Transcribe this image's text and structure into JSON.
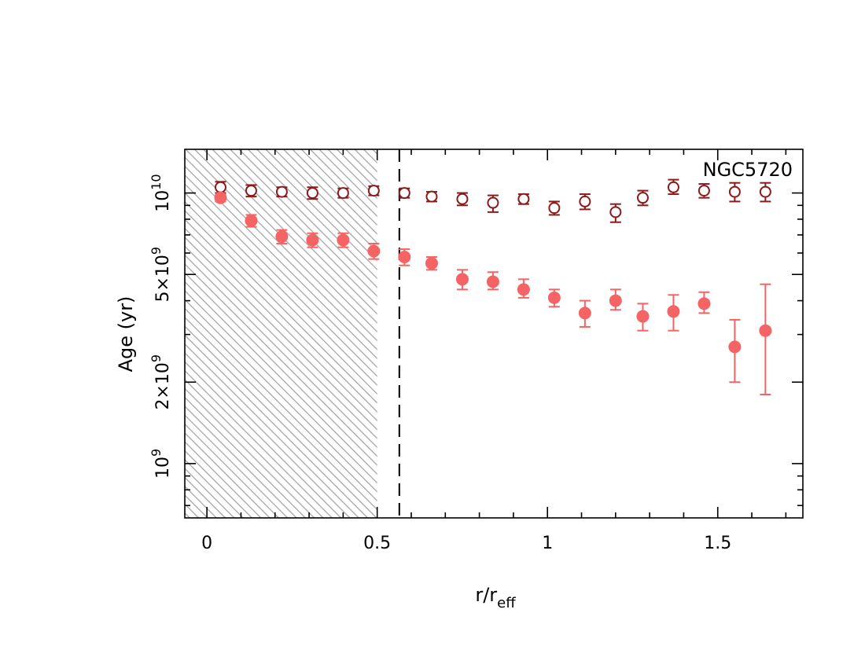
{
  "chart_data": {
    "type": "scatter",
    "title": "",
    "annotation": "NGC5720",
    "xlabel": "r/r",
    "xlabel_sub": "eff",
    "ylabel": "Age (yr)",
    "xlim": [
      -0.065,
      1.75
    ],
    "ylim": [
      630000000.0,
      14500000000.0
    ],
    "y_scale": "log",
    "grid": false,
    "legend": "none",
    "x_ticks": [
      {
        "value": 0,
        "label": "0"
      },
      {
        "value": 0.5,
        "label": "0.5"
      },
      {
        "value": 1,
        "label": "1"
      },
      {
        "value": 1.5,
        "label": "1.5"
      }
    ],
    "y_ticks": [
      {
        "value": 1000000000.0,
        "base": "10",
        "exp": "9"
      },
      {
        "value": 2000000000.0,
        "base": "2×10",
        "exp": "9"
      },
      {
        "value": 5000000000.0,
        "base": "5×10",
        "exp": "9"
      },
      {
        "value": 10000000000.0,
        "base": "10",
        "exp": "10"
      }
    ],
    "shaded_region": {
      "x_from": -0.065,
      "x_to": 0.5,
      "pattern": "diagonal-hatch",
      "color": "#a0a0a0"
    },
    "vline": {
      "x": 0.565,
      "style": "dashed",
      "color": "#000000"
    },
    "series": [
      {
        "marker": "open-circle",
        "color": "#8b1a1a",
        "points": [
          {
            "x": 0.04,
            "y": 10500000000.0,
            "lo": 10000000000.0,
            "hi": 11000000000.0
          },
          {
            "x": 0.13,
            "y": 10200000000.0,
            "lo": 9700000000.0,
            "hi": 10700000000.0
          },
          {
            "x": 0.22,
            "y": 10100000000.0,
            "lo": 9700000000.0,
            "hi": 10500000000.0
          },
          {
            "x": 0.31,
            "y": 10000000000.0,
            "lo": 9500000000.0,
            "hi": 10500000000.0
          },
          {
            "x": 0.4,
            "y": 10000000000.0,
            "lo": 9600000000.0,
            "hi": 10400000000.0
          },
          {
            "x": 0.49,
            "y": 10200000000.0,
            "lo": 9800000000.0,
            "hi": 10600000000.0
          },
          {
            "x": 0.58,
            "y": 10000000000.0,
            "lo": 9600000000.0,
            "hi": 10400000000.0
          },
          {
            "x": 0.66,
            "y": 9700000000.0,
            "lo": 9300000000.0,
            "hi": 10100000000.0
          },
          {
            "x": 0.75,
            "y": 9500000000.0,
            "lo": 9000000000.0,
            "hi": 10000000000.0
          },
          {
            "x": 0.84,
            "y": 9200000000.0,
            "lo": 8500000000.0,
            "hi": 9800000000.0
          },
          {
            "x": 0.93,
            "y": 9500000000.0,
            "lo": 9100000000.0,
            "hi": 9900000000.0
          },
          {
            "x": 1.02,
            "y": 8800000000.0,
            "lo": 8300000000.0,
            "hi": 9300000000.0
          },
          {
            "x": 1.11,
            "y": 9300000000.0,
            "lo": 8700000000.0,
            "hi": 9900000000.0
          },
          {
            "x": 1.2,
            "y": 8500000000.0,
            "lo": 7800000000.0,
            "hi": 9100000000.0
          },
          {
            "x": 1.28,
            "y": 9600000000.0,
            "lo": 9000000000.0,
            "hi": 10200000000.0
          },
          {
            "x": 1.37,
            "y": 10500000000.0,
            "lo": 9900000000.0,
            "hi": 11200000000.0
          },
          {
            "x": 1.46,
            "y": 10200000000.0,
            "lo": 9600000000.0,
            "hi": 10800000000.0
          },
          {
            "x": 1.55,
            "y": 10100000000.0,
            "lo": 9300000000.0,
            "hi": 10900000000.0
          },
          {
            "x": 1.64,
            "y": 10100000000.0,
            "lo": 9300000000.0,
            "hi": 10900000000.0
          }
        ]
      },
      {
        "marker": "filled-circle",
        "color": "#f56464",
        "points": [
          {
            "x": 0.04,
            "y": 9600000000.0,
            "lo": 9300000000.0,
            "hi": 9900000000.0
          },
          {
            "x": 0.13,
            "y": 7900000000.0,
            "lo": 7500000000.0,
            "hi": 8300000000.0
          },
          {
            "x": 0.22,
            "y": 6900000000.0,
            "lo": 6500000000.0,
            "hi": 7300000000.0
          },
          {
            "x": 0.31,
            "y": 6700000000.0,
            "lo": 6300000000.0,
            "hi": 7100000000.0
          },
          {
            "x": 0.4,
            "y": 6700000000.0,
            "lo": 6300000000.0,
            "hi": 7100000000.0
          },
          {
            "x": 0.49,
            "y": 6100000000.0,
            "lo": 5700000000.0,
            "hi": 6500000000.0
          },
          {
            "x": 0.58,
            "y": 5800000000.0,
            "lo": 5400000000.0,
            "hi": 6200000000.0
          },
          {
            "x": 0.66,
            "y": 5500000000.0,
            "lo": 5200000000.0,
            "hi": 5800000000.0
          },
          {
            "x": 0.75,
            "y": 4800000000.0,
            "lo": 4400000000.0,
            "hi": 5200000000.0
          },
          {
            "x": 0.84,
            "y": 4700000000.0,
            "lo": 4400000000.0,
            "hi": 5100000000.0
          },
          {
            "x": 0.93,
            "y": 4400000000.0,
            "lo": 4100000000.0,
            "hi": 4800000000.0
          },
          {
            "x": 1.02,
            "y": 4100000000.0,
            "lo": 3800000000.0,
            "hi": 4400000000.0
          },
          {
            "x": 1.11,
            "y": 3600000000.0,
            "lo": 3200000000.0,
            "hi": 4000000000.0
          },
          {
            "x": 1.2,
            "y": 4000000000.0,
            "lo": 3700000000.0,
            "hi": 4400000000.0
          },
          {
            "x": 1.28,
            "y": 3500000000.0,
            "lo": 3100000000.0,
            "hi": 3900000000.0
          },
          {
            "x": 1.37,
            "y": 3650000000.0,
            "lo": 3100000000.0,
            "hi": 4200000000.0
          },
          {
            "x": 1.46,
            "y": 3900000000.0,
            "lo": 3600000000.0,
            "hi": 4300000000.0
          },
          {
            "x": 1.55,
            "y": 2700000000.0,
            "lo": 2000000000.0,
            "hi": 3400000000.0
          },
          {
            "x": 1.64,
            "y": 3100000000.0,
            "lo": 1800000000.0,
            "hi": 4600000000.0
          }
        ]
      }
    ]
  }
}
